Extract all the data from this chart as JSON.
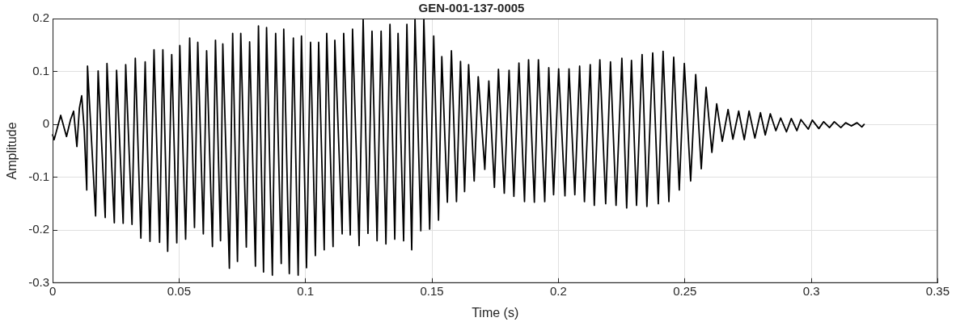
{
  "chart_data": {
    "type": "line",
    "title": "GEN-001-137-0005",
    "xlabel": "Time (s)",
    "ylabel": "Amplitude",
    "xlim": [
      0,
      0.35
    ],
    "xticks": [
      0,
      0.05,
      0.1,
      0.15,
      0.2,
      0.25,
      0.3,
      0.35
    ],
    "ylim": [
      -0.3,
      0.2
    ],
    "yticks": [
      -0.3,
      -0.2,
      -0.1,
      0,
      0.1,
      0.2
    ],
    "grid": true,
    "legend": false,
    "marker": "none",
    "line_style": "solid",
    "series": [
      {
        "color": "#000000",
        "x": [
          0,
          0.0006,
          0.0032,
          0.0055,
          0.0071,
          0.0083,
          0.0096,
          0.0106,
          0.0115,
          0.0125,
          0.0135,
          0.0138,
          0.017,
          0.018,
          0.0208,
          0.0215,
          0.0244,
          0.0253,
          0.0279,
          0.0289,
          0.0314,
          0.0327,
          0.0349,
          0.0366,
          0.0385,
          0.0401,
          0.0423,
          0.0436,
          0.0455,
          0.0471,
          0.0491,
          0.0503,
          0.0526,
          0.0542,
          0.0561,
          0.0574,
          0.0596,
          0.0609,
          0.0632,
          0.0644,
          0.0664,
          0.0673,
          0.0699,
          0.0712,
          0.0731,
          0.0744,
          0.0766,
          0.0779,
          0.0802,
          0.0814,
          0.0834,
          0.0846,
          0.0869,
          0.0882,
          0.0904,
          0.0914,
          0.0936,
          0.0952,
          0.0971,
          0.0984,
          0.1004,
          0.102,
          0.1039,
          0.1052,
          0.1074,
          0.1084,
          0.1109,
          0.1116,
          0.1145,
          0.1151,
          0.1177,
          0.1186,
          0.1212,
          0.1228,
          0.1247,
          0.1263,
          0.1283,
          0.1299,
          0.1318,
          0.1334,
          0.1353,
          0.1366,
          0.1388,
          0.1401,
          0.142,
          0.1433,
          0.1456,
          0.1468,
          0.1491,
          0.1507,
          0.1526,
          0.1539,
          0.1561,
          0.1577,
          0.1597,
          0.1613,
          0.1629,
          0.1645,
          0.1667,
          0.1683,
          0.1709,
          0.1725,
          0.1747,
          0.1763,
          0.1786,
          0.1805,
          0.1824,
          0.1844,
          0.1866,
          0.1882,
          0.1905,
          0.1921,
          0.1946,
          0.1962,
          0.1981,
          0.2001,
          0.2026,
          0.2042,
          0.2065,
          0.2084,
          0.2103,
          0.2126,
          0.2142,
          0.2164,
          0.2187,
          0.2206,
          0.2228,
          0.2251,
          0.227,
          0.2289,
          0.2309,
          0.2331,
          0.235,
          0.2373,
          0.2395,
          0.2414,
          0.2437,
          0.2456,
          0.2478,
          0.2498,
          0.2523,
          0.2543,
          0.2565,
          0.2584,
          0.2607,
          0.2626,
          0.2648,
          0.2671,
          0.269,
          0.2713,
          0.2735,
          0.2754,
          0.2777,
          0.2799,
          0.2818,
          0.2838,
          0.286,
          0.2879,
          0.2902,
          0.2921,
          0.2943,
          0.2959,
          0.2988,
          0.3004,
          0.303,
          0.3049,
          0.3072,
          0.3091,
          0.3117,
          0.3136,
          0.3158,
          0.3181,
          0.32,
          0.3209
        ],
        "values": [
          -0.02,
          -0.029,
          0.017,
          -0.023,
          0.009,
          0.025,
          -0.042,
          0.031,
          0.054,
          -0.011,
          -0.124,
          0.11,
          -0.173,
          0.101,
          -0.176,
          0.115,
          -0.186,
          0.102,
          -0.187,
          0.113,
          -0.189,
          0.125,
          -0.215,
          0.118,
          -0.221,
          0.141,
          -0.223,
          0.141,
          -0.24,
          0.132,
          -0.224,
          0.149,
          -0.217,
          0.163,
          -0.195,
          0.155,
          -0.207,
          0.139,
          -0.231,
          0.159,
          -0.22,
          0.152,
          -0.272,
          0.172,
          -0.259,
          0.172,
          -0.232,
          0.156,
          -0.268,
          0.186,
          -0.279,
          0.183,
          -0.285,
          0.172,
          -0.263,
          0.18,
          -0.282,
          0.163,
          -0.285,
          0.167,
          -0.271,
          0.155,
          -0.248,
          0.155,
          -0.237,
          0.172,
          -0.231,
          0.159,
          -0.207,
          0.172,
          -0.209,
          0.18,
          -0.229,
          0.198,
          -0.206,
          0.176,
          -0.22,
          0.176,
          -0.226,
          0.189,
          -0.217,
          0.172,
          -0.22,
          0.189,
          -0.237,
          0.199,
          -0.201,
          0.199,
          -0.198,
          0.167,
          -0.181,
          0.128,
          -0.147,
          0.139,
          -0.146,
          0.119,
          -0.127,
          0.113,
          -0.107,
          0.09,
          -0.085,
          0.082,
          -0.119,
          0.104,
          -0.13,
          0.102,
          -0.136,
          0.116,
          -0.146,
          0.122,
          -0.147,
          0.122,
          -0.146,
          0.107,
          -0.133,
          0.105,
          -0.135,
          0.105,
          -0.133,
          0.11,
          -0.146,
          0.113,
          -0.153,
          0.122,
          -0.15,
          0.118,
          -0.153,
          0.125,
          -0.158,
          0.121,
          -0.153,
          0.132,
          -0.155,
          0.135,
          -0.15,
          0.138,
          -0.146,
          0.127,
          -0.124,
          0.115,
          -0.107,
          0.094,
          -0.084,
          0.07,
          -0.053,
          0.039,
          -0.032,
          0.028,
          -0.028,
          0.025,
          -0.029,
          0.025,
          -0.026,
          0.022,
          -0.02,
          0.02,
          -0.012,
          0.012,
          -0.014,
          0.011,
          -0.012,
          0.009,
          -0.009,
          0.008,
          -0.008,
          0.005,
          -0.006,
          0.005,
          -0.006,
          0.003,
          -0.003,
          0.003,
          -0.005,
          0.0
        ]
      }
    ]
  }
}
